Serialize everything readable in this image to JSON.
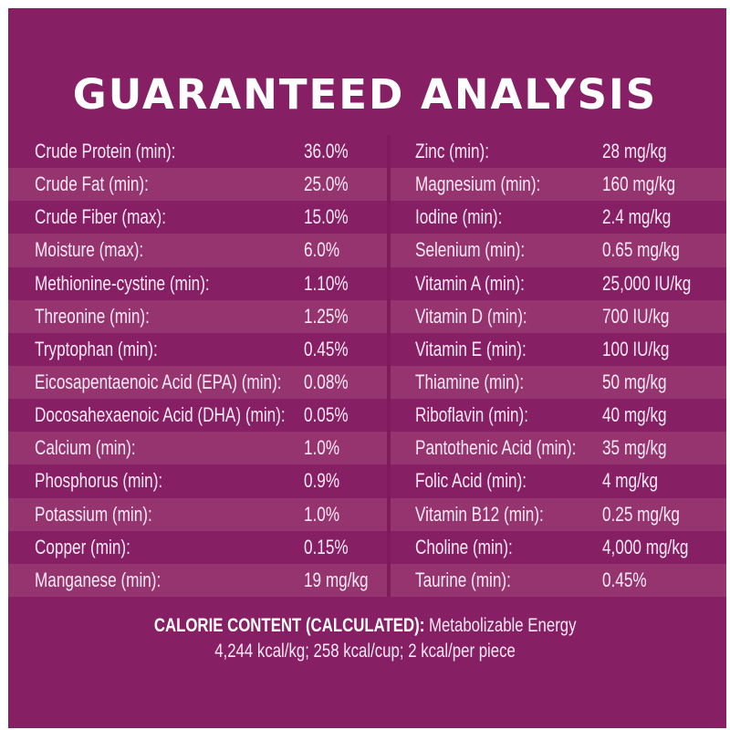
{
  "title": "GUARANTEED ANALYSIS",
  "colors": {
    "background": "#861f63",
    "stripe": "#96346f",
    "text": "#fbe9f4"
  },
  "left_column": [
    {
      "label": "Crude Protein (min):",
      "value": "36.0%"
    },
    {
      "label": "Crude Fat (min):",
      "value": "25.0%"
    },
    {
      "label": "Crude Fiber (max):",
      "value": "15.0%"
    },
    {
      "label": "Moisture (max):",
      "value": "6.0%"
    },
    {
      "label": "Methionine-cystine (min):",
      "value": "1.10%"
    },
    {
      "label": "Threonine (min):",
      "value": "1.25%"
    },
    {
      "label": "Tryptophan (min):",
      "value": "0.45%"
    },
    {
      "label": "Eicosapentaenoic Acid (EPA) (min):",
      "value": "0.08%"
    },
    {
      "label": "Docosahexaenoic Acid (DHA) (min):",
      "value": "0.05%"
    },
    {
      "label": "Calcium (min):",
      "value": "1.0%"
    },
    {
      "label": "Phosphorus (min):",
      "value": "0.9%"
    },
    {
      "label": "Potassium (min):",
      "value": "1.0%"
    },
    {
      "label": "Copper (min):",
      "value": "0.15%"
    },
    {
      "label": "Manganese (min):",
      "value": "19 mg/kg"
    }
  ],
  "right_column": [
    {
      "label": "Zinc (min):",
      "value": "28 mg/kg"
    },
    {
      "label": "Magnesium (min):",
      "value": "160 mg/kg"
    },
    {
      "label": "Iodine (min):",
      "value": "2.4 mg/kg"
    },
    {
      "label": "Selenium  (min):",
      "value": "0.65 mg/kg"
    },
    {
      "label": "Vitamin A (min):",
      "value": "25,000 IU/kg"
    },
    {
      "label": "Vitamin D (min):",
      "value": "700 IU/kg"
    },
    {
      "label": "Vitamin E (min):",
      "value": "100 IU/kg"
    },
    {
      "label": "Thiamine (min):",
      "value": "50 mg/kg"
    },
    {
      "label": "Riboflavin (min):",
      "value": "40 mg/kg"
    },
    {
      "label": "Pantothenic Acid (min):",
      "value": "35 mg/kg"
    },
    {
      "label": "Folic Acid (min):",
      "value": "4 mg/kg"
    },
    {
      "label": "Vitamin B12 (min):",
      "value": "0.25 mg/kg"
    },
    {
      "label": "Choline (min):",
      "value": "4,000 mg/kg"
    },
    {
      "label": "Taurine (min):",
      "value": "0.45%"
    }
  ],
  "calorie": {
    "heading": "CALORIE CONTENT (CALCULATED):",
    "line1_rest": " Metabolizable Energy",
    "line2": "4,244 kcal/kg; 258 kcal/cup; 2 kcal/per piece"
  }
}
